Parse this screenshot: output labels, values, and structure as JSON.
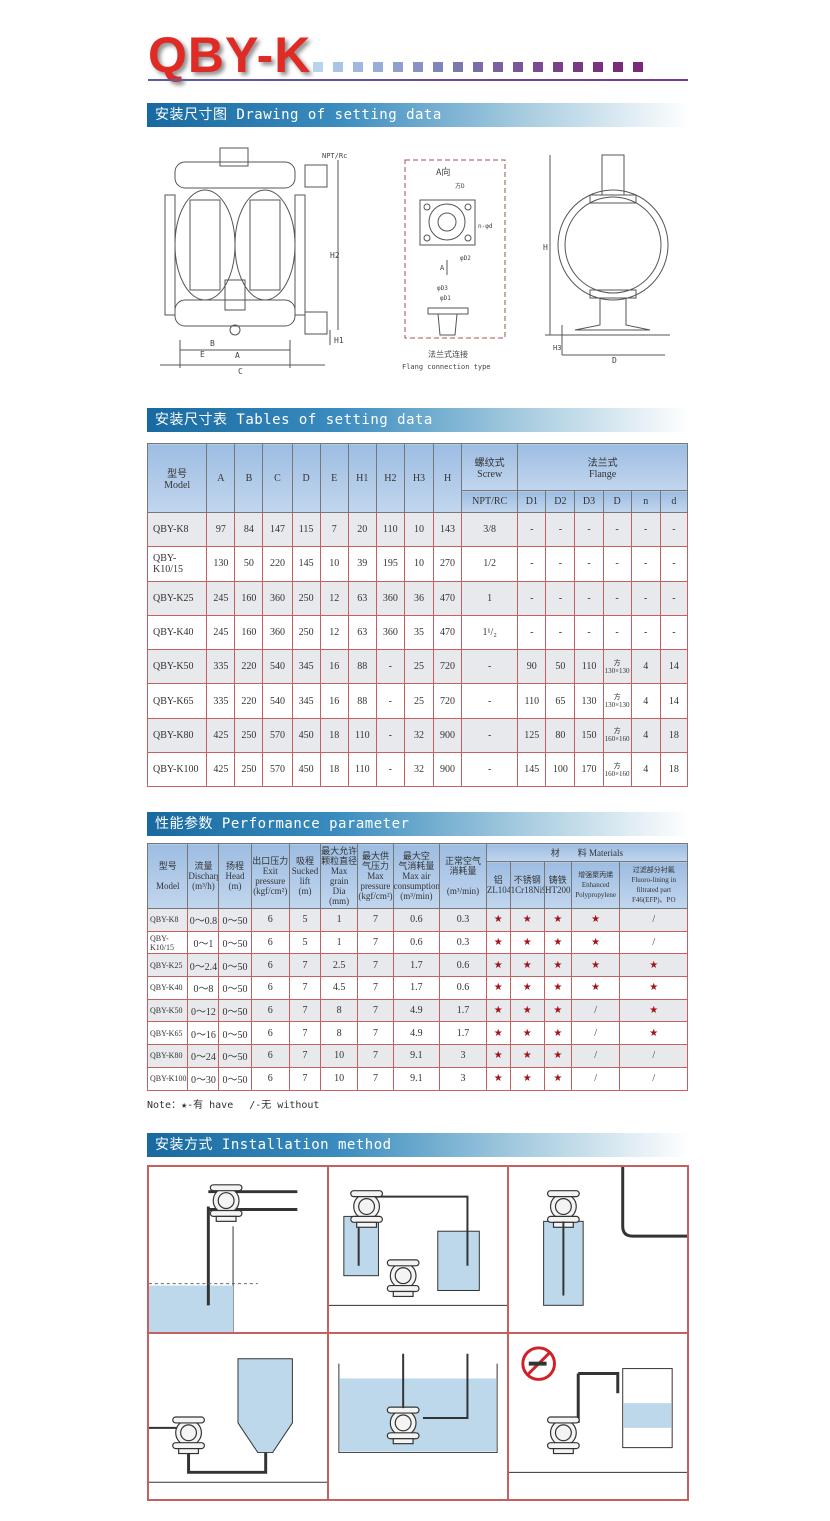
{
  "header": {
    "logo": "QBY-K",
    "square_colors": [
      "#b9d3ec",
      "#a9c5e6",
      "#9fb8e0",
      "#97acd8",
      "#8e9fd0",
      "#8792c6",
      "#7f85bb",
      "#7b78b0",
      "#7a6ca8",
      "#7a60a0",
      "#7a5599",
      "#7a4a92",
      "#7a418b",
      "#7a3985",
      "#7a3280",
      "#7a2c7b",
      "#7a287a"
    ]
  },
  "sections": {
    "drawing": "安装尺寸图 Drawing of setting data",
    "tables": "安装尺寸表 Tables of setting data",
    "performance": "性能参数 Performance parameter",
    "installation": "安装方式 Installation method"
  },
  "drawing": {
    "front_labels": {
      "npt": "NPT/Rc",
      "h2": "H2",
      "h1": "H1",
      "e": "E",
      "a": "A",
      "b": "B",
      "c": "C"
    },
    "flange_labels": {
      "view": "A向",
      "sq_d": "方D",
      "n_d": "n-φd",
      "d2": "φD2",
      "arrow": "A",
      "d3": "φD3",
      "d1": "φD1",
      "cn": "法兰式连接",
      "en": "Flang connection type"
    },
    "side_labels": {
      "h": "H",
      "h3": "H3",
      "d": "D"
    }
  },
  "setting_table": {
    "header_top": {
      "model": "型号\nModel",
      "cols": [
        "A",
        "B",
        "C",
        "D",
        "E",
        "H1",
        "H2",
        "H3",
        "H"
      ],
      "screw": "螺纹式\nScrew",
      "flange": "法兰式\nFlange"
    },
    "header_sub": [
      "NPT/RC",
      "D1",
      "D2",
      "D3",
      "D",
      "n",
      "d"
    ],
    "rows": [
      [
        "QBY-K8",
        "97",
        "84",
        "147",
        "115",
        "7",
        "20",
        "110",
        "10",
        "143",
        "3/8",
        "-",
        "-",
        "-",
        "-",
        "-",
        "-"
      ],
      [
        "QBY-K10/15",
        "130",
        "50",
        "220",
        "145",
        "10",
        "39",
        "195",
        "10",
        "270",
        "1/2",
        "-",
        "-",
        "-",
        "-",
        "-",
        "-"
      ],
      [
        "QBY-K25",
        "245",
        "160",
        "360",
        "250",
        "12",
        "63",
        "360",
        "36",
        "470",
        "1",
        "-",
        "-",
        "-",
        "-",
        "-",
        "-"
      ],
      [
        "QBY-K40",
        "245",
        "160",
        "360",
        "250",
        "12",
        "63",
        "360",
        "35",
        "470",
        "1¹/₂",
        "-",
        "-",
        "-",
        "-",
        "-",
        "-"
      ],
      [
        "QBY-K50",
        "335",
        "220",
        "540",
        "345",
        "16",
        "88",
        "-",
        "25",
        "720",
        "-",
        "90",
        "50",
        "110",
        "方\n130×130",
        "4",
        "14"
      ],
      [
        "QBY-K65",
        "335",
        "220",
        "540",
        "345",
        "16",
        "88",
        "-",
        "25",
        "720",
        "-",
        "110",
        "65",
        "130",
        "方\n130×130",
        "4",
        "14"
      ],
      [
        "QBY-K80",
        "425",
        "250",
        "570",
        "450",
        "18",
        "110",
        "-",
        "32",
        "900",
        "-",
        "125",
        "80",
        "150",
        "方\n160×160",
        "4",
        "18"
      ],
      [
        "QBY-K100",
        "425",
        "250",
        "570",
        "450",
        "18",
        "110",
        "-",
        "32",
        "900",
        "-",
        "145",
        "100",
        "170",
        "方\n160×160",
        "4",
        "18"
      ]
    ]
  },
  "performance_table": {
    "header_top": [
      "型号\n\nModel",
      "流量\nDischarge\n(m³/h)",
      "扬程\nHead\n(m)",
      "出口压力\nExit\npressure\n(kgf/cm²)",
      "吸程\nSucked\nlift\n(m)",
      "最大允许\n颗粒直径\nMax grain\nDia\n(mm)",
      "最大供\n气压力\nMax\npressure\n(kgf/cm²)",
      "最大空\n气消耗量\nMax air\nconsumption\n(m³/min)",
      "正常空气\n消耗量\n\n(m³/min)"
    ],
    "materials": "材　　料 Materials",
    "material_cols": [
      "铝\nZL104",
      "不锈钢\n1Cr18Ni9Ti",
      "铸铁\nHT200",
      "增强聚丙烯\nEnhanced\nPolypropylene",
      "过滤部分衬氟\nFluoro-lining in filtrated part\nF46(EFP)、PO"
    ],
    "rows": [
      [
        "QBY-K8",
        "0～0.8",
        "0～50",
        "6",
        "5",
        "1",
        "7",
        "0.6",
        "0.3",
        "★",
        "★",
        "★",
        "★",
        "/"
      ],
      [
        "QBY-K10/15",
        "0～1",
        "0～50",
        "6",
        "5",
        "1",
        "7",
        "0.6",
        "0.3",
        "★",
        "★",
        "★",
        "★",
        "/"
      ],
      [
        "QBY-K25",
        "0～2.4",
        "0～50",
        "6",
        "7",
        "2.5",
        "7",
        "1.7",
        "0.6",
        "★",
        "★",
        "★",
        "★",
        "★"
      ],
      [
        "QBY-K40",
        "0～8",
        "0～50",
        "6",
        "7",
        "4.5",
        "7",
        "1.7",
        "0.6",
        "★",
        "★",
        "★",
        "★",
        "★"
      ],
      [
        "QBY-K50",
        "0～12",
        "0～50",
        "6",
        "7",
        "8",
        "7",
        "4.9",
        "1.7",
        "★",
        "★",
        "★",
        "/",
        "★"
      ],
      [
        "QBY-K65",
        "0～16",
        "0～50",
        "6",
        "7",
        "8",
        "7",
        "4.9",
        "1.7",
        "★",
        "★",
        "★",
        "/",
        "★"
      ],
      [
        "QBY-K80",
        "0～24",
        "0～50",
        "6",
        "7",
        "10",
        "7",
        "9.1",
        "3",
        "★",
        "★",
        "★",
        "/",
        "/"
      ],
      [
        "QBY-K100",
        "0～30",
        "0～50",
        "6",
        "7",
        "10",
        "7",
        "9.1",
        "3",
        "★",
        "★",
        "★",
        "/",
        "/"
      ]
    ],
    "note": "Note：★-有 have　 /-无 without"
  },
  "colors": {
    "header_red": "#e02a26",
    "grid_line": "#c46060",
    "section_blue": "#17699f",
    "star": "#a3141a",
    "water": "#bcd8ea"
  },
  "installation": {
    "panels": [
      "pump-above-tank",
      "pump-between-tanks",
      "pump-on-tank",
      "pump-from-hopper",
      "pump-submerged",
      "no-smoking-hazard"
    ]
  }
}
